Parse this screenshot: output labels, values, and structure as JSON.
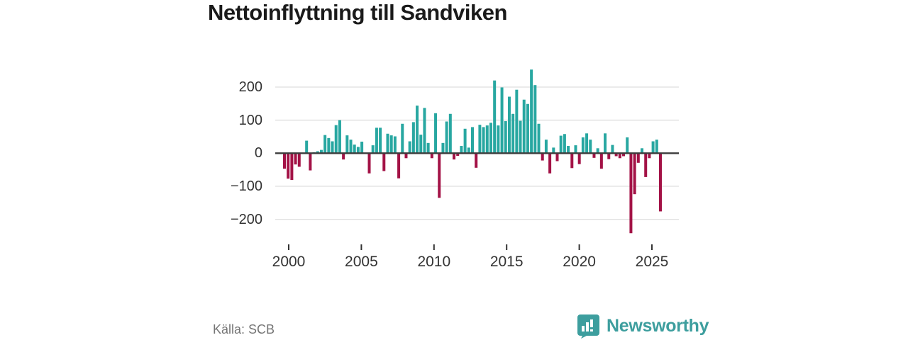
{
  "title": "Nettoinflyttning till Sandviken",
  "source": "Källa: SCB",
  "brand": {
    "name": "Newsworthy",
    "color": "#3d9e9e",
    "icon": "bar-chart-speech-bubble-icon"
  },
  "colors": {
    "positive_bar": "#28a7a1",
    "negative_bar": "#a31246",
    "zero_axis": "#3c3c3c",
    "gridline": "#e1e1e1",
    "tick_text": "#333333",
    "muted_text": "#757575"
  },
  "chart_data": {
    "type": "bar",
    "title": "Nettoinflyttning till Sandviken",
    "frequency": "quarterly",
    "start_period": "2000 Q1",
    "end_period": "2025 Q3",
    "xlabel": "",
    "ylabel": "",
    "x_tick_labels": [
      "2000",
      "2005",
      "2010",
      "2015",
      "2020",
      "2025"
    ],
    "y_ticks": [
      200,
      100,
      0,
      -100,
      -200
    ],
    "y_tick_labels": [
      "200",
      "100",
      "0",
      "−100",
      "−200"
    ],
    "ylim": [
      -260,
      265
    ],
    "grid": true,
    "legend": "none",
    "series": [
      {
        "name": "Nettoinflyttning",
        "values": [
          -47,
          -77,
          -81,
          -34,
          -41,
          1,
          38,
          -52,
          3,
          6,
          10,
          55,
          46,
          36,
          85,
          100,
          -19,
          54,
          41,
          26,
          19,
          35,
          0,
          -61,
          24,
          77,
          77,
          -54,
          59,
          54,
          51,
          -76,
          89,
          -15,
          36,
          94,
          144,
          56,
          137,
          31,
          -15,
          121,
          -135,
          31,
          96,
          119,
          -19,
          -8,
          22,
          74,
          17,
          79,
          -44,
          86,
          79,
          84,
          92,
          220,
          84,
          199,
          97,
          171,
          119,
          192,
          98,
          162,
          149,
          253,
          206,
          89,
          -22,
          41,
          -61,
          17,
          -24,
          53,
          58,
          22,
          -45,
          24,
          -33,
          48,
          60,
          41,
          -14,
          15,
          -47,
          60,
          -18,
          25,
          -9,
          -15,
          -9,
          48,
          -242,
          -124,
          -29,
          15,
          -72,
          -15,
          36,
          41,
          -176
        ]
      }
    ]
  }
}
